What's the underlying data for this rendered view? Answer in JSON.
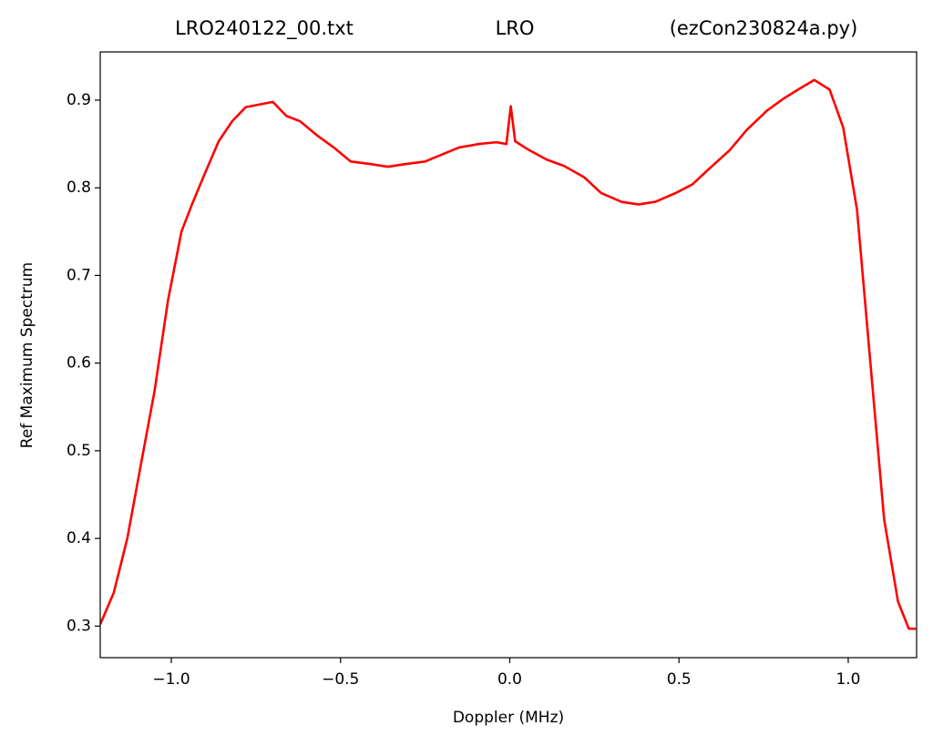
{
  "chart_data": {
    "type": "line",
    "titles": [
      "LRO240122_00.txt",
      "LRO",
      "(ezCon230824a.py)"
    ],
    "x_label": "Doppler (MHz)",
    "y_label": "Ref Maximum Spectrum",
    "color": "#ff0000",
    "x": [
      -1.21,
      -1.17,
      -1.13,
      -1.09,
      -1.05,
      -1.01,
      -0.97,
      -0.94,
      -0.9,
      -0.86,
      -0.82,
      -0.78,
      -0.74,
      -0.7,
      -0.66,
      -0.62,
      -0.57,
      -0.52,
      -0.47,
      -0.41,
      -0.36,
      -0.31,
      -0.25,
      -0.2,
      -0.15,
      -0.09,
      -0.04,
      -0.01,
      0.003,
      0.016,
      0.057,
      0.11,
      0.16,
      0.22,
      0.27,
      0.33,
      0.38,
      0.43,
      0.49,
      0.54,
      0.59,
      0.65,
      0.7,
      0.76,
      0.81,
      0.86,
      0.9,
      0.945,
      0.985,
      1.026,
      1.066,
      1.106,
      1.147,
      1.179,
      1.2
    ],
    "values": [
      0.302,
      0.338,
      0.4,
      0.484,
      0.567,
      0.671,
      0.75,
      0.78,
      0.817,
      0.853,
      0.876,
      0.892,
      0.895,
      0.898,
      0.882,
      0.876,
      0.86,
      0.846,
      0.83,
      0.827,
      0.824,
      0.827,
      0.83,
      0.838,
      0.846,
      0.85,
      0.852,
      0.85,
      0.893,
      0.853,
      0.843,
      0.832,
      0.825,
      0.812,
      0.794,
      0.784,
      0.781,
      0.784,
      0.794,
      0.804,
      0.822,
      0.843,
      0.866,
      0.888,
      0.902,
      0.914,
      0.923,
      0.912,
      0.869,
      0.775,
      0.598,
      0.422,
      0.328,
      0.297,
      0.297
    ],
    "xlim": [
      -1.21,
      1.202
    ],
    "ylim": [
      0.264,
      0.955
    ],
    "xticks": [
      {
        "value": -1.0,
        "label": "−1.0"
      },
      {
        "value": -0.5,
        "label": "−0.5"
      },
      {
        "value": 0.0,
        "label": "0.0"
      },
      0.5,
      {
        "value": 1.0,
        "label": "1.0"
      }
    ],
    "yticks": [
      0.3,
      0.4,
      0.5,
      0.6,
      0.7,
      0.8,
      0.9
    ],
    "grid": false
  }
}
